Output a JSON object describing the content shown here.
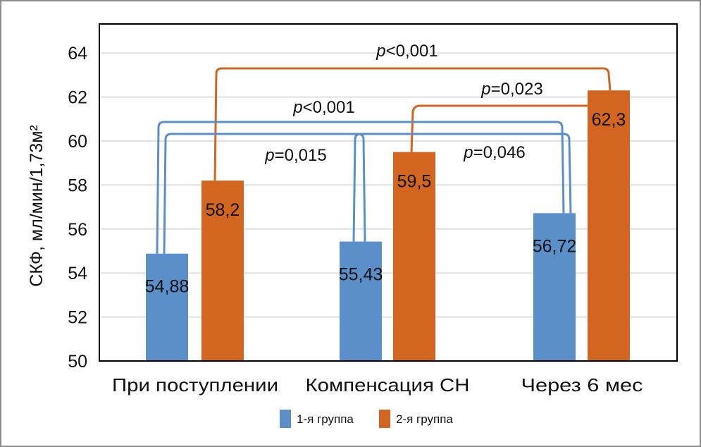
{
  "chart_data": {
    "type": "bar",
    "title": "",
    "xlabel": "",
    "ylabel": "СКФ, мл/мин/1,73м²",
    "ylim": [
      50,
      64
    ],
    "yticks": [
      "50",
      "52",
      "54",
      "56",
      "58",
      "60",
      "62",
      "64"
    ],
    "grid": true,
    "legend_position": "bottom",
    "categories": [
      "При поступлении",
      "Компенсация СН",
      "Через 6 мес"
    ],
    "series": [
      {
        "name": "1-я группа",
        "color": "#5b8fc9",
        "values": [
          54.88,
          55.43,
          56.72
        ],
        "labels": [
          "54,88",
          "55,43",
          "56,72"
        ]
      },
      {
        "name": "2-я группа",
        "color": "#d2651f",
        "values": [
          58.2,
          59.5,
          62.3
        ],
        "labels": [
          "58,2",
          "59,5",
          "62,3"
        ]
      }
    ],
    "annotations": [
      {
        "series": "2-я группа",
        "from": "При поступлении",
        "to": "Через 6 мес",
        "p": "<0,001"
      },
      {
        "series": "2-я группа",
        "from": "Компенсация СН",
        "to": "Через 6 мес",
        "p": "=0,023"
      },
      {
        "series": "1-я группа",
        "from": "При поступлении",
        "to": "Через 6 мес",
        "p": "<0,001"
      },
      {
        "series": "1-я группа",
        "from": "При поступлении",
        "to": "Компенсация СН",
        "p": "=0,015"
      },
      {
        "series": "1-я группа",
        "from": "Компенсация СН",
        "to": "Через 6 мес",
        "p": "=0,046"
      }
    ]
  }
}
